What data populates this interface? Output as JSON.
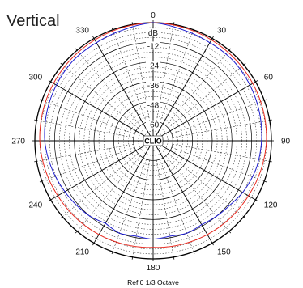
{
  "chart_data": {
    "type": "polar",
    "title": "Vertical",
    "radial_unit": "dB",
    "radial_range": [
      -72,
      0
    ],
    "radial_ticks": [
      -12,
      -24,
      -36,
      -48,
      -60
    ],
    "angle_ticks": [
      0,
      30,
      60,
      90,
      120,
      150,
      180,
      210,
      240,
      270,
      300,
      330
    ],
    "angle_direction": "clockwise, 0 at top",
    "center_label": "CLIO",
    "footer": "Ref 0   1/3 Octave",
    "grid": true,
    "series": [
      {
        "color": "#e8281e",
        "angles": [
          0,
          30,
          60,
          90,
          120,
          150,
          180,
          210,
          240,
          270,
          300,
          330,
          360
        ],
        "values": [
          0,
          -1,
          -2,
          -3,
          -5,
          -6,
          -7,
          -6,
          -5,
          -3,
          -2,
          -1,
          0
        ]
      },
      {
        "color": "#1c1cd0",
        "angles": [
          0,
          15,
          30,
          45,
          60,
          75,
          90,
          105,
          120,
          130,
          140,
          150,
          160,
          170,
          180,
          190,
          200,
          210,
          220,
          230,
          240,
          255,
          270,
          285,
          300,
          315,
          330,
          345,
          360
        ],
        "values": [
          0,
          -2,
          -3,
          -3,
          -4,
          -5,
          -6,
          -7,
          -9,
          -11,
          -12,
          -13,
          -12,
          -13,
          -12,
          -13,
          -12,
          -14,
          -12,
          -11,
          -10,
          -8,
          -6,
          -5,
          -4,
          -3,
          -3,
          -2,
          0
        ]
      }
    ]
  },
  "colors": {
    "grid": "#000000",
    "background": "#ffffff"
  }
}
